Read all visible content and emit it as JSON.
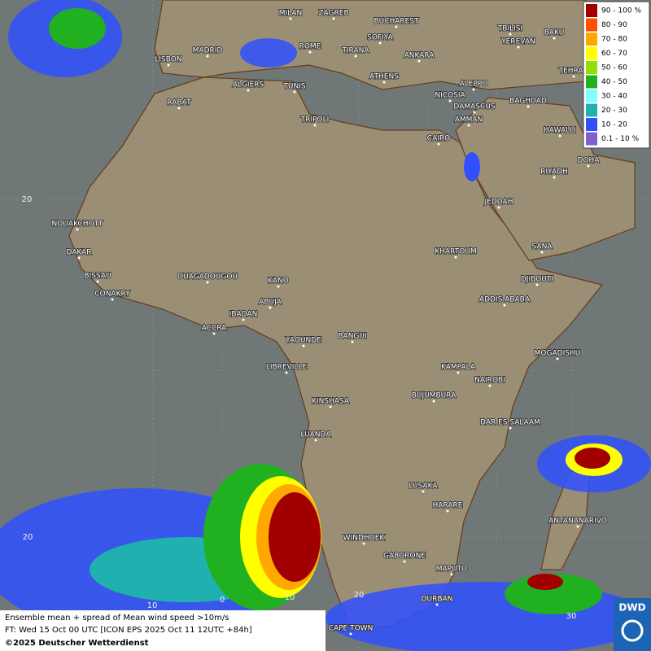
{
  "map": {
    "cities": [
      "MILAN",
      "ZAGREB",
      "BUCHAREST",
      "SOFIYA",
      "ROME",
      "TIRANA",
      "ANKARA",
      "MADRID",
      "LISBON",
      "TBILISI",
      "YEREVAN",
      "BAKU",
      "TEHRAN",
      "ATHENS",
      "ALGIERS",
      "TUNIS",
      "ALEPPO",
      "RABAT",
      "NICOSIA",
      "BAGHDAD",
      "DAMASCUS",
      "TRIPOLI",
      "AMMAN",
      "CAIRO",
      "HAWALLI",
      "DOHA",
      "RIYADH",
      "JEDDAH",
      "NOUAKCHOTT",
      "DAKAR",
      "SANA",
      "KHARTOUM",
      "BISSAU",
      "DJIBOUTI",
      "OUAGADOUGOU",
      "KANO",
      "CONAKRY",
      "ADDIS ABABA",
      "ABUJA",
      "IBADAN",
      "ACCRA",
      "YAOUNDE",
      "BANGUI",
      "MOGADISHU",
      "LIBREVILLE",
      "KAMPALA",
      "NAIROBI",
      "KINSHASA",
      "BUJUMBURA",
      "DAR ES SALAAM",
      "LUANDA",
      "LUSAKA",
      "HARARE",
      "ANTANANARIVO",
      "WINDHOEK",
      "GABORONE",
      "MAPUTO",
      "DURBAN",
      "CAPE TOWN"
    ],
    "grid_labels": [
      "20",
      "20",
      "10",
      "0",
      "10",
      "20",
      "30"
    ],
    "legend": [
      {
        "label": "90 - 100 %",
        "color": "#a00000"
      },
      {
        "label": "80 - 90",
        "color": "#ff5000"
      },
      {
        "label": "70 - 80",
        "color": "#ffa800"
      },
      {
        "label": "60 - 70",
        "color": "#ffff00"
      },
      {
        "label": "50 - 60",
        "color": "#90e000"
      },
      {
        "label": "40 - 50",
        "color": "#20b020"
      },
      {
        "label": "30 - 40",
        "color": "#80ffff"
      },
      {
        "label": "20 - 30",
        "color": "#20b0b0"
      },
      {
        "label": "10 - 20",
        "color": "#3050ff"
      },
      {
        "label": "0.1 - 10 %",
        "color": "#8060d0"
      }
    ],
    "footer": [
      "Ensemble mean + spread of Mean wind speed >10m/s",
      "FT: Wed 15 Oct 00 UTC [ICON EPS 2025 Oct 11 12UTC +84h]",
      "©2025 Deutscher Wetterdienst"
    ],
    "logo": "DWD"
  }
}
